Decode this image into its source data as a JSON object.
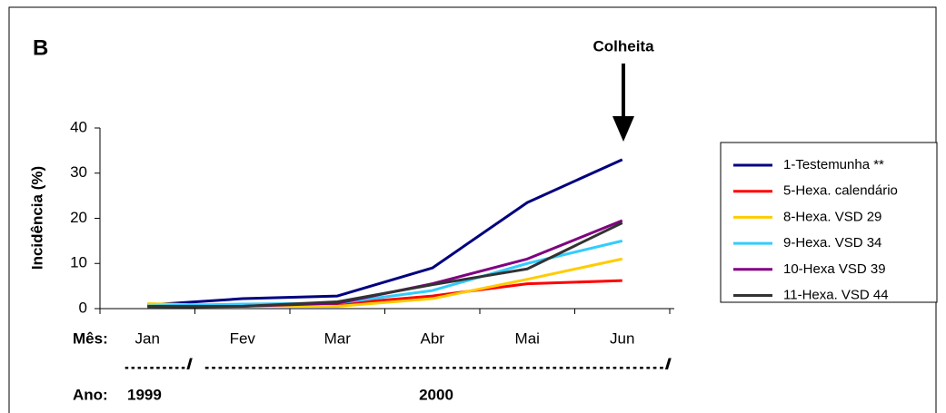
{
  "chart_data": {
    "type": "line",
    "panel_label": "B",
    "annotation": "Colheita",
    "ylabel": "Incidência (%)",
    "x_prefix": "Mês:",
    "categories": [
      "Jan",
      "Fev",
      "Mar",
      "Abr",
      "Mai",
      "Jun"
    ],
    "year_prefix": "Ano:",
    "years": [
      "1999",
      "2000"
    ],
    "year_separators": [
      "........../",
      "...................................................................../"
    ],
    "ylim": [
      0,
      40
    ],
    "yticks": [
      0,
      10,
      20,
      30,
      40
    ],
    "series": [
      {
        "name": "1-Testemunha **",
        "color": "#000080",
        "values": [
          0.8,
          2.2,
          2.8,
          9,
          23.5,
          33
        ]
      },
      {
        "name": "5-Hexa. calendário",
        "color": "#ff0000",
        "values": [
          0.8,
          0.8,
          1,
          2.8,
          5.5,
          6.2
        ]
      },
      {
        "name": "8-Hexa. VSD 29",
        "color": "#ffcc00",
        "values": [
          1.1,
          0.6,
          0.5,
          2.2,
          6.5,
          11
        ]
      },
      {
        "name": "9-Hexa. VSD 34",
        "color": "#33ccff",
        "values": [
          0.6,
          1,
          1.2,
          4,
          10,
          15
        ]
      },
      {
        "name": "10-Hexa VSD 39",
        "color": "#800080",
        "values": [
          0.5,
          0.5,
          1.2,
          5.5,
          11,
          19.5
        ]
      },
      {
        "name": "11-Hexa. VSD 44",
        "color": "#333333",
        "values": [
          0.3,
          0.5,
          1.5,
          5.3,
          8.8,
          19
        ]
      }
    ]
  }
}
